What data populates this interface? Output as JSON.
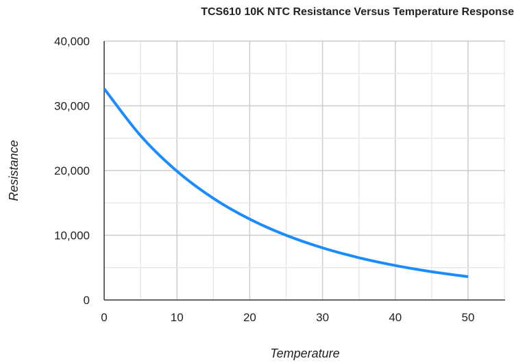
{
  "chart_data": {
    "type": "line",
    "title": "TCS610 10K NTC Resistance Versus Temperature Response",
    "xlabel": "Temperature",
    "ylabel": "Resistance",
    "xlim": [
      0,
      55
    ],
    "ylim": [
      0,
      40000
    ],
    "xticks": [
      "0",
      "10",
      "20",
      "30",
      "40",
      "50"
    ],
    "yticks": [
      "0",
      "10,000",
      "20,000",
      "30,000",
      "40,000"
    ],
    "grid": true,
    "color": "#1a8cff",
    "series": [
      {
        "x": [
          0,
          5,
          10,
          15,
          20,
          25,
          30,
          35,
          40,
          45,
          50
        ],
        "y": [
          32650,
          25390,
          19900,
          15710,
          12490,
          10000,
          8057,
          6530,
          5327,
          4369,
          3603
        ]
      }
    ]
  }
}
